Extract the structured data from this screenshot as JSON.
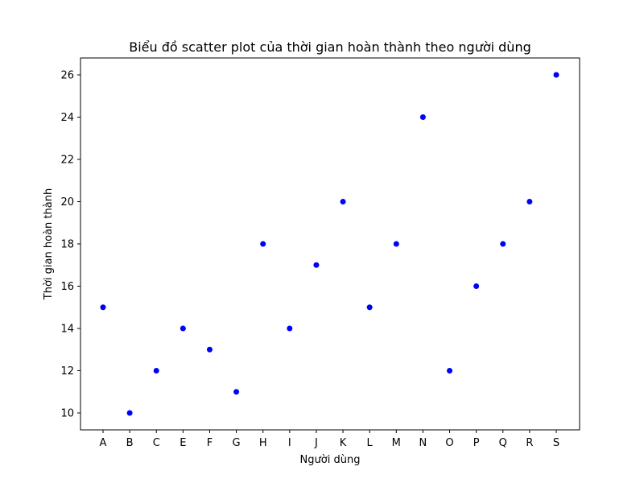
{
  "chart_data": {
    "type": "scatter",
    "title": "Biểu đồ scatter plot của thời gian hoàn thành theo người dùng",
    "xlabel": "Người dùng",
    "ylabel": "Thời gian hoàn thành",
    "categories": [
      "A",
      "B",
      "C",
      "E",
      "F",
      "G",
      "H",
      "I",
      "J",
      "K",
      "L",
      "M",
      "N",
      "O",
      "P",
      "Q",
      "R",
      "S"
    ],
    "values": [
      15,
      10,
      12,
      14,
      13,
      11,
      18,
      14,
      17,
      20,
      15,
      18,
      24,
      12,
      16,
      18,
      20,
      26
    ],
    "yticks": [
      10,
      12,
      14,
      16,
      18,
      20,
      22,
      24,
      26
    ],
    "ylim": [
      9.2,
      26.8
    ],
    "grid": false,
    "marker_color": "#0000ff"
  }
}
